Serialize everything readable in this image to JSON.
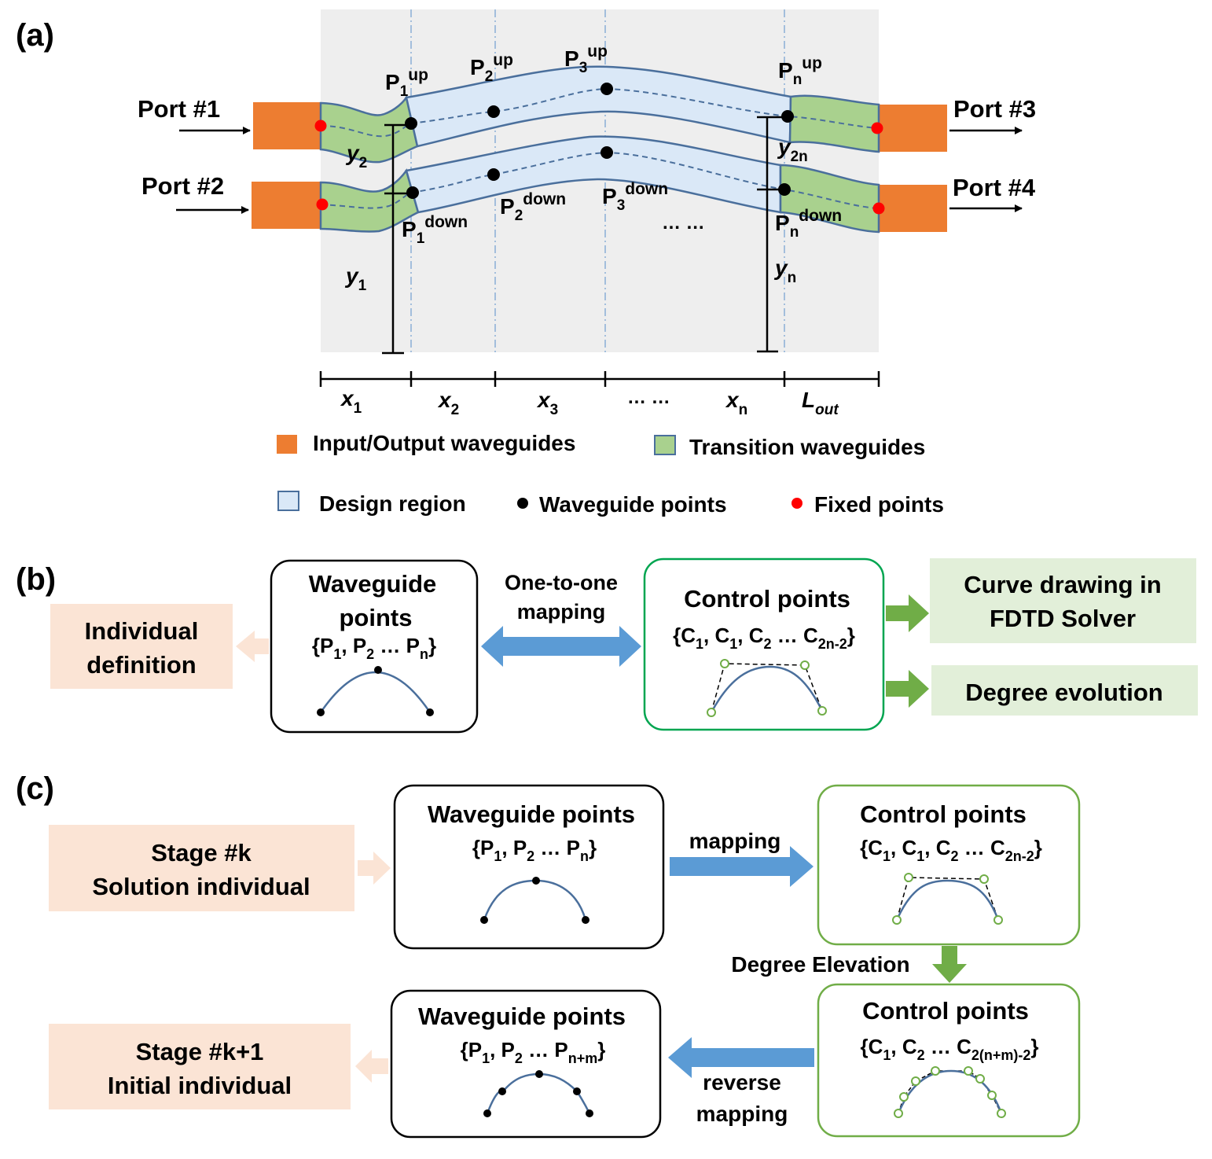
{
  "panel_a": {
    "label": "(a)",
    "ports": {
      "port1": "Port #1",
      "port2": "Port #2",
      "port3": "Port #3",
      "port4": "Port #4"
    },
    "points": {
      "p1_up": {
        "base": "P",
        "sub": "1",
        "sup": "up"
      },
      "p2_up": {
        "base": "P",
        "sub": "2",
        "sup": "up"
      },
      "p3_up": {
        "base": "P",
        "sub": "3",
        "sup": "up"
      },
      "pn_up": {
        "base": "P",
        "sub": "n",
        "sup": "up"
      },
      "p1_down": {
        "base": "P",
        "sub": "1",
        "sup": "down"
      },
      "p2_down": {
        "base": "P",
        "sub": "2",
        "sup": "down"
      },
      "p3_down": {
        "base": "P",
        "sub": "3",
        "sup": "down"
      },
      "pn_down": {
        "base": "P",
        "sub": "n",
        "sup": "down"
      }
    },
    "y_labels": {
      "y1": {
        "base": "y",
        "sub": "1"
      },
      "y2": {
        "base": "y",
        "sub": "2"
      },
      "yn": {
        "base": "y",
        "sub": "n"
      },
      "y2n": {
        "base": "y",
        "sub": "2n"
      }
    },
    "x_labels": {
      "x1": {
        "base": "x",
        "sub": "1"
      },
      "x2": {
        "base": "x",
        "sub": "2"
      },
      "x3": {
        "base": "x",
        "sub": "3"
      },
      "xn": {
        "base": "x",
        "sub": "n"
      },
      "lout": {
        "base": "L",
        "sub": "out"
      }
    },
    "ellipsis": "… …",
    "legend": {
      "io": "Input/Output waveguides",
      "transition": "Transition waveguides",
      "design": "Design region",
      "wg_points": "Waveguide points",
      "fixed": "Fixed points"
    },
    "colors": {
      "io": "#ed7d31",
      "transition": "#a9d18e",
      "design": "#dae8f7",
      "outline": "#4a6f9c",
      "fixed": "#ff0000",
      "region_bg": "#eeeeee"
    }
  },
  "panel_b": {
    "label": "(b)",
    "individual": [
      "Individual",
      "definition"
    ],
    "wg_title": [
      "Waveguide",
      "points"
    ],
    "wg_set": {
      "open": "{P",
      "s1": "1",
      "mid1": ", P",
      "s2": "2",
      "mid2": " … P",
      "s3": "n",
      "close": "}"
    },
    "arrow_label": [
      "One-to-one",
      "mapping"
    ],
    "cp_title": "Control points",
    "cp_set": {
      "open": "{C",
      "s1": "1",
      "mid1": ", C",
      "s2": "1",
      "mid2": ", C",
      "s3": "2",
      "mid3": " … C",
      "s4": "2n-2",
      "close": "}"
    },
    "curve_drawing": [
      "Curve drawing in",
      "FDTD Solver"
    ],
    "degree_evolution": "Degree evolution"
  },
  "panel_c": {
    "label": "(c)",
    "stage_k": [
      "Stage #k",
      "Solution individual"
    ],
    "wg_title": "Waveguide points",
    "wg_set": {
      "open": "{P",
      "s1": "1",
      "mid1": ", P",
      "s2": "2",
      "mid2": " … P",
      "s3": "n",
      "close": "}"
    },
    "mapping": "mapping",
    "cp_title": "Control points",
    "cp_set": {
      "open": "{C",
      "s1": "1",
      "mid1": ", C",
      "s2": "1",
      "mid2": ", C",
      "s3": "2",
      "mid3": " … C",
      "s4": "2n-2",
      "close": "}"
    },
    "degree_elevation": "Degree Elevation",
    "cp2_title": "Control points",
    "cp2_set": {
      "open": "{C",
      "s1": "1",
      "mid1": ", C",
      "s2": "2",
      "mid2": " … C",
      "s3": "2(n+m)-2",
      "close": "}"
    },
    "reverse_mapping": [
      "reverse",
      "mapping"
    ],
    "wg2_title": "Waveguide points",
    "wg2_set": {
      "open": "{P",
      "s1": "1",
      "mid1": ", P",
      "s2": "2",
      "mid2": " … P",
      "s3": "n+m",
      "close": "}"
    },
    "stage_k1": [
      "Stage #k+1",
      "Initial individual"
    ]
  }
}
